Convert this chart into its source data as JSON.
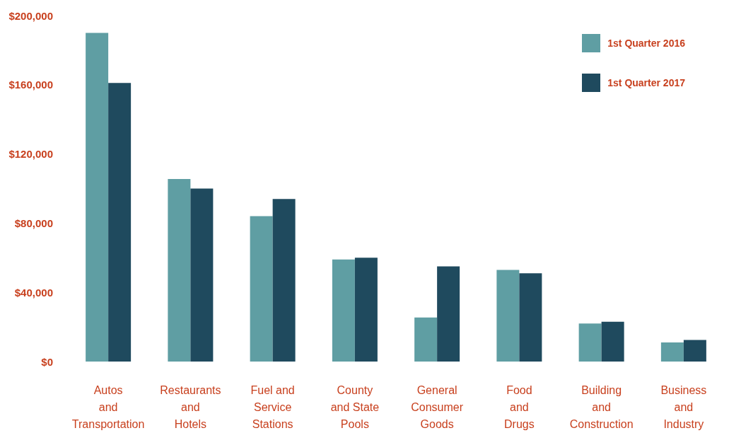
{
  "chart_data": {
    "type": "bar",
    "categories": [
      "Autos\nand\nTransportation",
      "Restaurants\nand\nHotels",
      "Fuel and\nService\nStations",
      "County\nand State\nPools",
      "General\nConsumer\nGoods",
      "Food\nand\nDrugs",
      "Building\nand\nConstruction",
      "Business\nand\nIndustry"
    ],
    "series": [
      {
        "name": "1st Quarter 2016",
        "color": "#5f9ea3",
        "values": [
          190000,
          105500,
          84000,
          59000,
          25500,
          53000,
          22000,
          11000
        ]
      },
      {
        "name": "1st Quarter 2017",
        "color": "#1f4a5e",
        "values": [
          161000,
          100000,
          94000,
          60000,
          55000,
          51000,
          23000,
          12500
        ]
      }
    ],
    "ylim": [
      0,
      200000
    ],
    "yticks": [
      {
        "value": 0,
        "label": "$0"
      },
      {
        "value": 40000,
        "label": "$40,000"
      },
      {
        "value": 80000,
        "label": "$80,000"
      },
      {
        "value": 120000,
        "label": "$120,000"
      },
      {
        "value": 160000,
        "label": "$160,000"
      },
      {
        "value": 200000,
        "label": "$200,000"
      }
    ],
    "grid": false,
    "legend": "top right"
  }
}
